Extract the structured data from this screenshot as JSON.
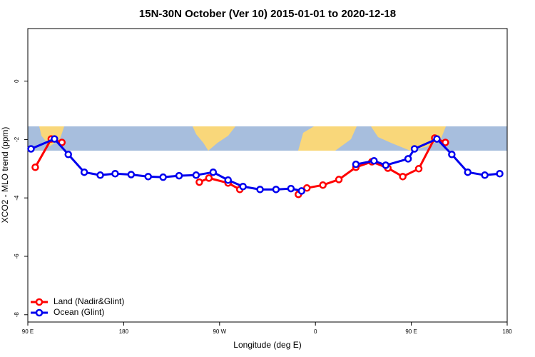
{
  "chart_data": {
    "type": "line",
    "title": "15N-30N October (Ver 10)   2015-01-01 to 2020-12-18",
    "xlabel": "Longitude (deg E)",
    "ylabel": "XCO2 - MLO trend (ppm)",
    "xlim": [
      90,
      540
    ],
    "ylim": [
      -8.25,
      1.8
    ],
    "xticks": [
      {
        "value": 90,
        "label": "90 E"
      },
      180,
      {
        "value": 270,
        "label": "90 W"
      },
      {
        "value": 360,
        "label": "0"
      },
      {
        "value": 450,
        "label": "90 E"
      },
      {
        "value": 540,
        "label": "180"
      }
    ],
    "yticks": [
      -8,
      -6,
      -4,
      -2,
      0
    ],
    "legend": "bottom-left",
    "series": [
      {
        "name": "Land (Nadir&Glint)",
        "color": "#ff0000",
        "x": [
          97,
          112,
          122,
          186,
          251,
          260,
          278,
          289,
          316,
          344,
          352,
          367,
          382,
          398,
          413,
          428,
          442,
          457,
          472,
          482
        ],
        "values": [
          -2.95,
          -1.98,
          -2.1,
          null,
          -3.46,
          -3.32,
          -3.49,
          -3.71,
          null,
          -3.88,
          -3.66,
          -3.56,
          -3.37,
          -2.95,
          -2.76,
          -2.98,
          -3.27,
          -3.0,
          -1.95,
          -2.1
        ]
      },
      {
        "name": "Ocean (Glint)",
        "color": "#0000ee",
        "x": [
          93,
          115,
          128,
          143,
          158,
          172,
          187,
          203,
          217,
          232,
          248,
          264,
          278,
          292,
          308,
          323,
          337,
          347,
          372,
          398,
          415,
          426,
          447,
          453,
          474,
          488,
          503,
          519,
          533
        ],
        "values": [
          -2.32,
          -1.98,
          -2.51,
          -3.12,
          -3.22,
          -3.17,
          -3.2,
          -3.27,
          -3.29,
          -3.24,
          -3.22,
          -3.12,
          -3.39,
          -3.61,
          -3.71,
          -3.71,
          -3.68,
          -3.76,
          null,
          -2.85,
          -2.73,
          -2.88,
          -2.66,
          -2.32,
          -1.98,
          -2.51,
          -3.12,
          -3.22,
          -3.17
        ]
      }
    ]
  }
}
